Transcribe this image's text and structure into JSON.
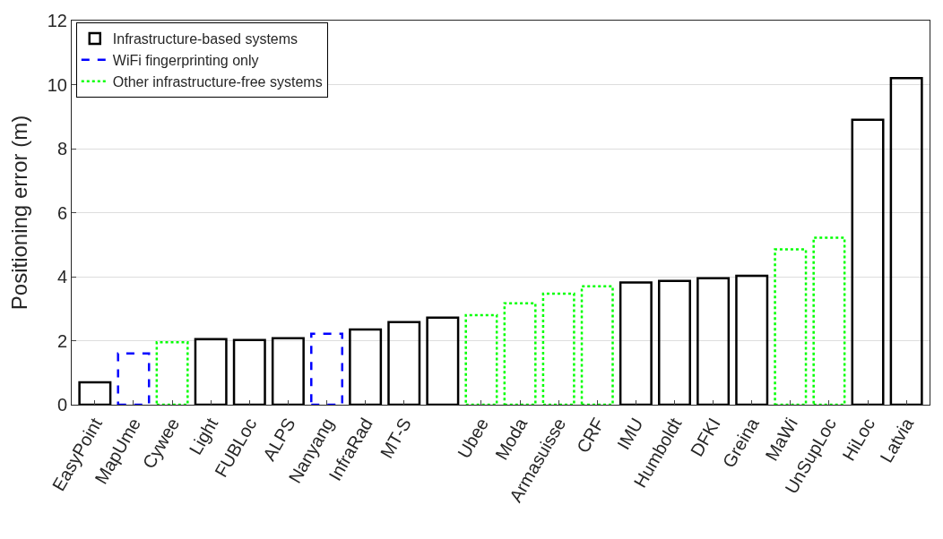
{
  "chart_data": {
    "type": "bar",
    "ylabel": "Positioning error (m)",
    "categories": [
      "EasyPoint",
      "MapUme",
      "Cywee",
      "Light",
      "FUBLoc",
      "ALPS",
      "Nanyang",
      "InfraRad",
      "MT-S",
      null,
      "Ubee",
      "Moda",
      "Armasuisse",
      "CRF",
      "IMU",
      "Humboldt",
      "DFKI",
      "Greina",
      "MaWi",
      "UnSupLoc",
      "HiLoc",
      "Latvia"
    ],
    "series": [
      {
        "name": "Infrastructure-based systems",
        "color": "#000000",
        "line_style": "solid",
        "values": [
          0.7,
          null,
          null,
          2.05,
          2.02,
          2.08,
          null,
          2.35,
          2.58,
          2.72,
          null,
          null,
          null,
          null,
          3.82,
          3.87,
          3.95,
          4.03,
          null,
          null,
          8.9,
          10.2
        ]
      },
      {
        "name": "WiFi fingerprinting only",
        "color": "#0000ff",
        "line_style": "dashed",
        "values": [
          null,
          1.6,
          null,
          null,
          null,
          null,
          2.22,
          null,
          null,
          null,
          null,
          null,
          null,
          null,
          null,
          null,
          null,
          null,
          null,
          null,
          null,
          null
        ]
      },
      {
        "name": "Other infrastructure-free systems",
        "color": "#00ff00",
        "line_style": "dotted",
        "values": [
          null,
          null,
          1.95,
          null,
          null,
          null,
          null,
          null,
          null,
          null,
          2.8,
          3.17,
          3.47,
          3.7,
          null,
          null,
          null,
          null,
          4.85,
          5.22,
          null,
          null
        ]
      }
    ],
    "ylim": [
      0,
      12
    ],
    "yticks": [
      0,
      2,
      4,
      6,
      8,
      10,
      12
    ],
    "grid": "y",
    "legend": "top left"
  }
}
